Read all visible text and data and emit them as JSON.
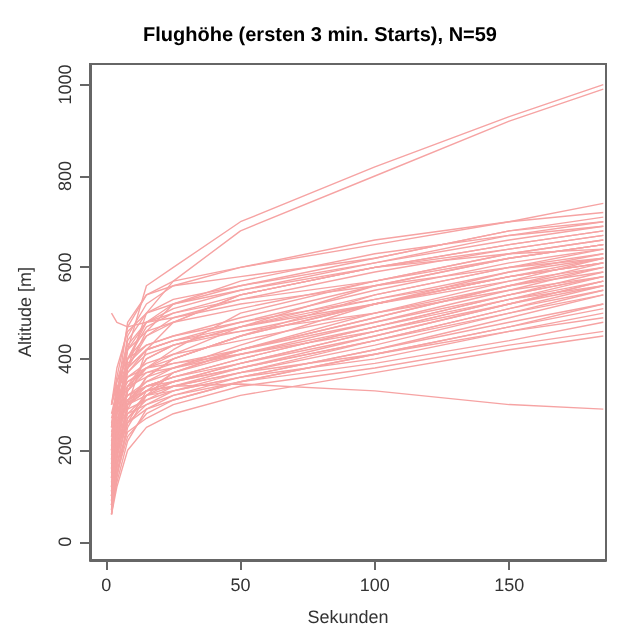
{
  "chart_data": {
    "type": "line",
    "title": "Flughöhe (ersten 3 min. Starts), N=59",
    "xlabel": "Sekunden",
    "ylabel": "Altitude [m]",
    "x": [
      2,
      4,
      8,
      15,
      25,
      50,
      100,
      150,
      185
    ],
    "xlim": [
      -6,
      186
    ],
    "xticks": [
      0,
      50,
      100,
      150
    ],
    "ylim": [
      -40,
      1045
    ],
    "yticks": [
      0,
      200,
      400,
      600,
      800,
      1000
    ],
    "grid": false,
    "marker": "none",
    "line_style": "solid",
    "series": [
      {
        "color": "#f6a3a3",
        "values": [
          100,
          250,
          420,
          560,
          600,
          700,
          820,
          930,
          1000
        ]
      },
      {
        "color": "#f6a3a3",
        "values": [
          80,
          200,
          380,
          500,
          570,
          680,
          800,
          920,
          990
        ]
      },
      {
        "color": "#f6a3a3",
        "values": [
          150,
          300,
          450,
          520,
          560,
          600,
          650,
          700,
          740
        ]
      },
      {
        "color": "#f6a3a3",
        "values": [
          200,
          320,
          480,
          540,
          570,
          600,
          660,
          700,
          720
        ]
      },
      {
        "color": "#f6a3a3",
        "values": [
          300,
          360,
          470,
          540,
          560,
          580,
          620,
          680,
          700
        ]
      },
      {
        "color": "#f6a3a3",
        "values": [
          120,
          250,
          380,
          460,
          520,
          570,
          630,
          670,
          690
        ]
      },
      {
        "color": "#f6a3a3",
        "values": [
          70,
          180,
          300,
          420,
          480,
          540,
          600,
          650,
          680
        ]
      },
      {
        "color": "#f6a3a3",
        "values": [
          250,
          320,
          400,
          450,
          480,
          540,
          600,
          640,
          670
        ]
      },
      {
        "color": "#f6a3a3",
        "values": [
          90,
          200,
          330,
          380,
          420,
          500,
          570,
          630,
          660
        ]
      },
      {
        "color": "#f6a3a3",
        "values": [
          180,
          280,
          340,
          380,
          410,
          470,
          560,
          620,
          650
        ]
      },
      {
        "color": "#f6a3a3",
        "values": [
          220,
          300,
          350,
          380,
          400,
          450,
          540,
          600,
          640
        ]
      },
      {
        "color": "#f6a3a3",
        "values": [
          100,
          230,
          310,
          350,
          380,
          430,
          520,
          590,
          630
        ]
      },
      {
        "color": "#f6a3a3",
        "values": [
          60,
          150,
          260,
          330,
          370,
          420,
          500,
          570,
          620
        ]
      },
      {
        "color": "#f6a3a3",
        "values": [
          260,
          310,
          340,
          360,
          380,
          420,
          490,
          560,
          610
        ]
      },
      {
        "color": "#f6a3a3",
        "values": [
          200,
          280,
          320,
          350,
          370,
          410,
          480,
          550,
          600
        ]
      },
      {
        "color": "#f6a3a3",
        "values": [
          140,
          250,
          300,
          340,
          360,
          400,
          470,
          540,
          590
        ]
      },
      {
        "color": "#f6a3a3",
        "values": [
          80,
          170,
          270,
          320,
          350,
          390,
          460,
          530,
          580
        ]
      },
      {
        "color": "#f6a3a3",
        "values": [
          280,
          300,
          320,
          340,
          360,
          390,
          450,
          520,
          570
        ]
      },
      {
        "color": "#f6a3a3",
        "values": [
          170,
          260,
          300,
          330,
          350,
          380,
          440,
          510,
          560
        ]
      },
      {
        "color": "#f6a3a3",
        "values": [
          110,
          210,
          280,
          320,
          340,
          370,
          430,
          500,
          550
        ]
      },
      {
        "color": "#f6a3a3",
        "values": [
          70,
          130,
          220,
          290,
          320,
          360,
          420,
          490,
          540
        ]
      },
      {
        "color": "#f6a3a3",
        "values": [
          240,
          290,
          310,
          330,
          340,
          370,
          410,
          470,
          520
        ]
      },
      {
        "color": "#f6a3a3",
        "values": [
          190,
          270,
          300,
          320,
          330,
          360,
          400,
          460,
          500
        ]
      },
      {
        "color": "#f6a3a3",
        "values": [
          130,
          230,
          280,
          300,
          320,
          350,
          390,
          440,
          480
        ]
      },
      {
        "color": "#f6a3a3",
        "values": [
          90,
          170,
          240,
          270,
          300,
          340,
          380,
          430,
          460
        ]
      },
      {
        "color": "#f6a3a3",
        "values": [
          60,
          120,
          200,
          250,
          280,
          320,
          370,
          420,
          450
        ]
      },
      {
        "color": "#f6a3a3",
        "values": [
          500,
          480,
          470,
          480,
          490,
          520,
          560,
          600,
          620
        ]
      },
      {
        "color": "#f6a3a3",
        "values": [
          280,
          330,
          380,
          420,
          440,
          460,
          500,
          550,
          580
        ]
      },
      {
        "color": "#f6a3a3",
        "values": [
          150,
          260,
          330,
          370,
          390,
          410,
          460,
          520,
          560
        ]
      },
      {
        "color": "#f6a3a3",
        "values": [
          100,
          200,
          300,
          330,
          340,
          345,
          330,
          300,
          290
        ]
      },
      {
        "color": "#f6a3a3",
        "values": [
          210,
          300,
          380,
          420,
          440,
          470,
          520,
          570,
          600
        ]
      },
      {
        "color": "#f6a3a3",
        "values": [
          300,
          350,
          400,
          430,
          450,
          480,
          530,
          580,
          610
        ]
      },
      {
        "color": "#f6a3a3",
        "values": [
          120,
          220,
          330,
          400,
          430,
          470,
          530,
          590,
          620
        ]
      },
      {
        "color": "#f6a3a3",
        "values": [
          80,
          190,
          300,
          360,
          400,
          450,
          520,
          580,
          610
        ]
      },
      {
        "color": "#f6a3a3",
        "values": [
          250,
          330,
          420,
          480,
          500,
          530,
          570,
          620,
          650
        ]
      },
      {
        "color": "#f6a3a3",
        "values": [
          160,
          280,
          370,
          420,
          440,
          480,
          550,
          610,
          640
        ]
      },
      {
        "color": "#f6a3a3",
        "values": [
          60,
          140,
          250,
          320,
          370,
          420,
          490,
          560,
          600
        ]
      },
      {
        "color": "#f6a3a3",
        "values": [
          230,
          300,
          360,
          390,
          410,
          440,
          500,
          560,
          590
        ]
      },
      {
        "color": "#f6a3a3",
        "values": [
          180,
          260,
          310,
          340,
          360,
          400,
          470,
          540,
          580
        ]
      },
      {
        "color": "#f6a3a3",
        "values": [
          110,
          200,
          270,
          310,
          340,
          380,
          450,
          520,
          570
        ]
      },
      {
        "color": "#f6a3a3",
        "values": [
          270,
          320,
          350,
          370,
          380,
          410,
          470,
          530,
          560
        ]
      },
      {
        "color": "#f6a3a3",
        "values": [
          90,
          190,
          260,
          300,
          330,
          370,
          440,
          510,
          550
        ]
      },
      {
        "color": "#f6a3a3",
        "values": [
          210,
          280,
          320,
          340,
          350,
          380,
          440,
          500,
          540
        ]
      },
      {
        "color": "#f6a3a3",
        "values": [
          140,
          240,
          290,
          310,
          330,
          360,
          420,
          480,
          520
        ]
      },
      {
        "color": "#f6a3a3",
        "values": [
          70,
          150,
          230,
          280,
          310,
          350,
          410,
          470,
          510
        ]
      },
      {
        "color": "#f6a3a3",
        "values": [
          300,
          340,
          360,
          380,
          390,
          420,
          480,
          540,
          580
        ]
      },
      {
        "color": "#f6a3a3",
        "values": [
          160,
          250,
          300,
          330,
          350,
          390,
          460,
          530,
          570
        ]
      },
      {
        "color": "#f6a3a3",
        "values": [
          120,
          210,
          260,
          290,
          310,
          350,
          410,
          460,
          490
        ]
      },
      {
        "color": "#f6a3a3",
        "values": [
          190,
          290,
          400,
          470,
          500,
          540,
          600,
          650,
          680
        ]
      },
      {
        "color": "#f6a3a3",
        "values": [
          100,
          240,
          380,
          450,
          490,
          530,
          590,
          640,
          670
        ]
      },
      {
        "color": "#f6a3a3",
        "values": [
          250,
          350,
          430,
          480,
          510,
          550,
          610,
          660,
          690
        ]
      },
      {
        "color": "#f6a3a3",
        "values": [
          80,
          220,
          400,
          480,
          520,
          560,
          620,
          680,
          710
        ]
      },
      {
        "color": "#f6a3a3",
        "values": [
          140,
          300,
          440,
          500,
          530,
          560,
          610,
          670,
          700
        ]
      },
      {
        "color": "#f6a3a3",
        "values": [
          200,
          330,
          420,
          460,
          480,
          510,
          570,
          630,
          660
        ]
      },
      {
        "color": "#f6a3a3",
        "values": [
          60,
          160,
          290,
          360,
          400,
          450,
          520,
          580,
          610
        ]
      },
      {
        "color": "#f6a3a3",
        "values": [
          230,
          310,
          370,
          410,
          430,
          460,
          520,
          580,
          620
        ]
      },
      {
        "color": "#f6a3a3",
        "values": [
          170,
          290,
          390,
          430,
          450,
          490,
          560,
          620,
          650
        ]
      },
      {
        "color": "#f6a3a3",
        "values": [
          110,
          230,
          340,
          400,
          430,
          470,
          540,
          600,
          630
        ]
      },
      {
        "color": "#f6a3a3",
        "values": [
          300,
          380,
          460,
          500,
          520,
          550,
          600,
          630,
          640
        ]
      }
    ]
  }
}
